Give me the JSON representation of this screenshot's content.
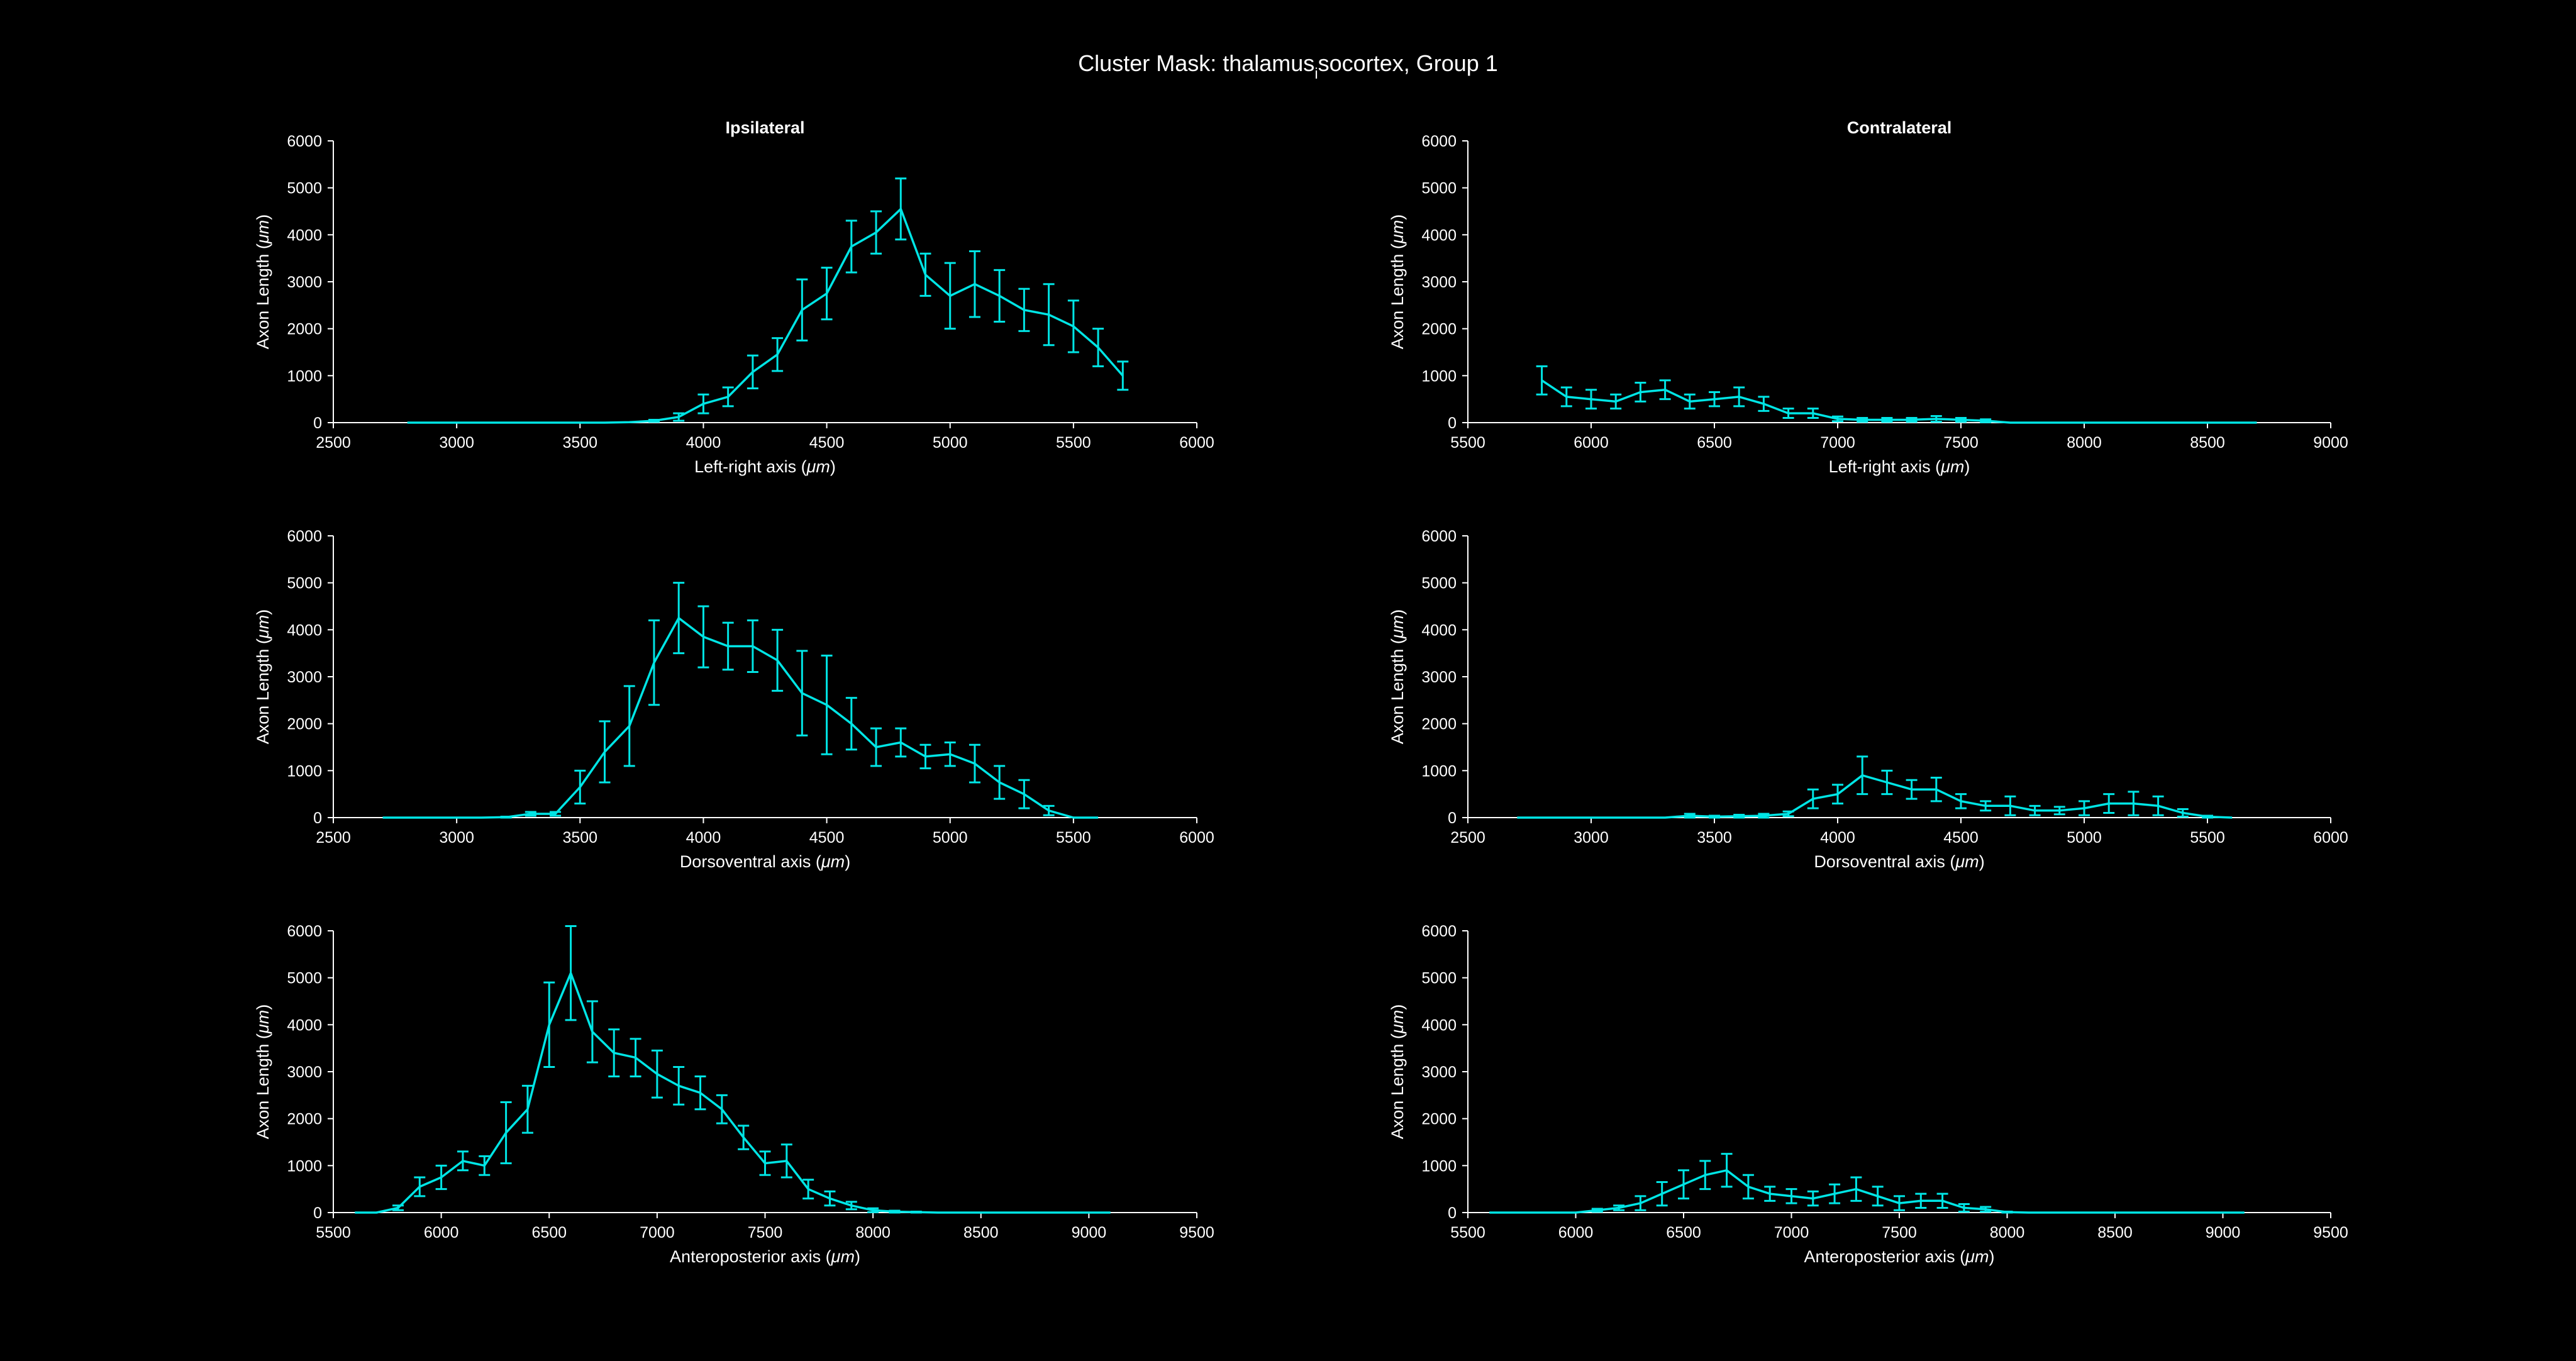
{
  "figure": {
    "title_main": "Cluster Mask: thalamus",
    "title_subscript": "i",
    "title_rest": "socortex, Group 1",
    "background": "#000000",
    "foreground": "#ffffff",
    "series_color": "#00e5e5"
  },
  "chart_data": [
    {
      "type": "line",
      "subplot_title": "Ipsilateral",
      "error_bars": true,
      "xlabel_prefix": "Left-right axis (",
      "xlabel_unit": "μm",
      "xlabel_suffix": ")",
      "ylabel_prefix": "Axon Length (",
      "ylabel_unit": "μm",
      "ylabel_suffix": ")",
      "xlim": [
        2500,
        6000
      ],
      "xticks": [
        2500,
        3000,
        3500,
        4000,
        4500,
        5000,
        5500,
        6000
      ],
      "ylim": [
        0,
        6000
      ],
      "yticks": [
        0,
        1000,
        2000,
        3000,
        4000,
        5000,
        6000
      ],
      "x": [
        2800,
        2900,
        3000,
        3100,
        3200,
        3300,
        3400,
        3500,
        3600,
        3700,
        3800,
        3900,
        4000,
        4100,
        4200,
        4300,
        4400,
        4500,
        4600,
        4700,
        4800,
        4900,
        5000,
        5100,
        5200,
        5300,
        5400,
        5500,
        5600,
        5700
      ],
      "y": [
        0,
        0,
        0,
        0,
        0,
        0,
        0,
        0,
        0,
        10,
        40,
        120,
        400,
        550,
        1080,
        1450,
        2400,
        2750,
        3750,
        4050,
        4550,
        3150,
        2700,
        2950,
        2700,
        2400,
        2300,
        2050,
        1600,
        1000
      ],
      "err": [
        0,
        0,
        0,
        0,
        0,
        0,
        0,
        0,
        0,
        0,
        20,
        80,
        200,
        200,
        350,
        350,
        650,
        550,
        550,
        450,
        650,
        450,
        700,
        700,
        550,
        450,
        650,
        550,
        400,
        300
      ]
    },
    {
      "type": "line",
      "subplot_title": "Contralateral",
      "error_bars": true,
      "xlabel_prefix": "Left-right axis (",
      "xlabel_unit": "μm",
      "xlabel_suffix": ")",
      "ylabel_prefix": "Axon Length (",
      "ylabel_unit": "μm",
      "ylabel_suffix": ")",
      "xlim": [
        5500,
        9000
      ],
      "xticks": [
        5500,
        6000,
        6500,
        7000,
        7500,
        8000,
        8500,
        9000
      ],
      "ylim": [
        0,
        6000
      ],
      "yticks": [
        0,
        1000,
        2000,
        3000,
        4000,
        5000,
        6000
      ],
      "x": [
        5800,
        5900,
        6000,
        6100,
        6200,
        6300,
        6400,
        6500,
        6600,
        6700,
        6800,
        6900,
        7000,
        7100,
        7200,
        7300,
        7400,
        7500,
        7600,
        7700,
        7800,
        7900,
        8000,
        8100,
        8200,
        8300,
        8400,
        8500,
        8600,
        8700
      ],
      "y": [
        900,
        550,
        500,
        450,
        650,
        700,
        450,
        500,
        550,
        400,
        200,
        200,
        80,
        60,
        60,
        60,
        80,
        60,
        40,
        0,
        0,
        0,
        0,
        0,
        0,
        0,
        0,
        0,
        0,
        0
      ],
      "err": [
        300,
        200,
        200,
        150,
        200,
        200,
        150,
        150,
        200,
        150,
        100,
        100,
        50,
        40,
        40,
        40,
        60,
        40,
        30,
        0,
        0,
        0,
        0,
        0,
        0,
        0,
        0,
        0,
        0,
        0
      ]
    },
    {
      "type": "line",
      "subplot_title": "",
      "error_bars": true,
      "xlabel_prefix": "Dorsoventral axis (",
      "xlabel_unit": "μm",
      "xlabel_suffix": ")",
      "ylabel_prefix": "Axon Length (",
      "ylabel_unit": "μm",
      "ylabel_suffix": ")",
      "xlim": [
        2500,
        6000
      ],
      "xticks": [
        2500,
        3000,
        3500,
        4000,
        4500,
        5000,
        5500,
        6000
      ],
      "ylim": [
        0,
        6000
      ],
      "yticks": [
        0,
        1000,
        2000,
        3000,
        4000,
        5000,
        6000
      ],
      "x": [
        2700,
        2800,
        2900,
        3000,
        3100,
        3200,
        3300,
        3400,
        3500,
        3600,
        3700,
        3800,
        3900,
        4000,
        4100,
        4200,
        4300,
        4400,
        4500,
        4600,
        4700,
        4800,
        4900,
        5000,
        5100,
        5200,
        5300,
        5400,
        5500,
        5600
      ],
      "y": [
        0,
        0,
        0,
        0,
        0,
        10,
        80,
        80,
        650,
        1400,
        1950,
        3300,
        4250,
        3850,
        3650,
        3650,
        3350,
        2650,
        2400,
        2000,
        1500,
        1600,
        1300,
        1350,
        1150,
        750,
        500,
        150,
        0,
        0
      ],
      "err": [
        0,
        0,
        0,
        0,
        0,
        10,
        40,
        40,
        350,
        650,
        850,
        900,
        750,
        650,
        500,
        550,
        650,
        900,
        1050,
        550,
        400,
        300,
        250,
        250,
        400,
        350,
        300,
        100,
        0,
        0
      ]
    },
    {
      "type": "line",
      "subplot_title": "",
      "error_bars": true,
      "xlabel_prefix": "Dorsoventral axis (",
      "xlabel_unit": "μm",
      "xlabel_suffix": ")",
      "ylabel_prefix": "Axon Length (",
      "ylabel_unit": "μm",
      "ylabel_suffix": ")",
      "xlim": [
        2500,
        6000
      ],
      "xticks": [
        2500,
        3000,
        3500,
        4000,
        4500,
        5000,
        5500,
        6000
      ],
      "ylim": [
        0,
        6000
      ],
      "yticks": [
        0,
        1000,
        2000,
        3000,
        4000,
        5000,
        6000
      ],
      "x": [
        2700,
        2800,
        2900,
        3000,
        3100,
        3200,
        3300,
        3400,
        3500,
        3600,
        3700,
        3800,
        3900,
        4000,
        4100,
        4200,
        4300,
        4400,
        4500,
        4600,
        4700,
        4800,
        4900,
        5000,
        5100,
        5200,
        5300,
        5400,
        5500,
        5600
      ],
      "y": [
        0,
        0,
        0,
        0,
        0,
        0,
        0,
        40,
        20,
        30,
        40,
        80,
        400,
        500,
        900,
        750,
        600,
        600,
        350,
        250,
        250,
        150,
        150,
        200,
        300,
        300,
        250,
        100,
        20,
        0
      ],
      "err": [
        0,
        0,
        0,
        0,
        0,
        0,
        0,
        40,
        20,
        30,
        40,
        50,
        200,
        200,
        400,
        250,
        200,
        250,
        150,
        100,
        200,
        100,
        80,
        150,
        200,
        250,
        200,
        80,
        20,
        0
      ]
    },
    {
      "type": "line",
      "subplot_title": "",
      "error_bars": true,
      "xlabel_prefix": "Anteroposterior axis (",
      "xlabel_unit": "μm",
      "xlabel_suffix": ")",
      "ylabel_prefix": "Axon Length (",
      "ylabel_unit": "μm",
      "ylabel_suffix": ")",
      "xlim": [
        5500,
        9500
      ],
      "xticks": [
        5500,
        6000,
        6500,
        7000,
        7500,
        8000,
        8500,
        9000,
        9500
      ],
      "ylim": [
        0,
        6000
      ],
      "yticks": [
        0,
        1000,
        2000,
        3000,
        4000,
        5000,
        6000
      ],
      "x": [
        5600,
        5700,
        5800,
        5900,
        6000,
        6100,
        6200,
        6300,
        6400,
        6500,
        6600,
        6700,
        6800,
        6900,
        7000,
        7100,
        7200,
        7300,
        7400,
        7500,
        7600,
        7700,
        7800,
        7900,
        8000,
        8100,
        8200,
        8300,
        8400,
        8500,
        8600,
        8700,
        8800,
        8900,
        9000,
        9100
      ],
      "y": [
        0,
        0,
        100,
        550,
        750,
        1100,
        1000,
        1700,
        2200,
        4000,
        5100,
        3850,
        3400,
        3300,
        2950,
        2700,
        2550,
        2200,
        1600,
        1050,
        1100,
        500,
        300,
        150,
        50,
        20,
        10,
        0,
        0,
        0,
        0,
        0,
        0,
        0,
        0,
        0
      ],
      "err": [
        0,
        0,
        50,
        200,
        250,
        200,
        200,
        650,
        500,
        900,
        1000,
        650,
        500,
        400,
        500,
        400,
        350,
        300,
        250,
        250,
        350,
        200,
        150,
        80,
        40,
        20,
        10,
        0,
        0,
        0,
        0,
        0,
        0,
        0,
        0,
        0
      ]
    },
    {
      "type": "line",
      "subplot_title": "",
      "error_bars": true,
      "xlabel_prefix": "Anteroposterior axis (",
      "xlabel_unit": "μm",
      "xlabel_suffix": ")",
      "ylabel_prefix": "Axon Length (",
      "ylabel_unit": "μm",
      "ylabel_suffix": ")",
      "xlim": [
        5500,
        9500
      ],
      "xticks": [
        5500,
        6000,
        6500,
        7000,
        7500,
        8000,
        8500,
        9000,
        9500
      ],
      "ylim": [
        0,
        6000
      ],
      "yticks": [
        0,
        1000,
        2000,
        3000,
        4000,
        5000,
        6000
      ],
      "x": [
        5600,
        5700,
        5800,
        5900,
        6000,
        6100,
        6200,
        6300,
        6400,
        6500,
        6600,
        6700,
        6800,
        6900,
        7000,
        7100,
        7200,
        7300,
        7400,
        7500,
        7600,
        7700,
        7800,
        7900,
        8000,
        8100,
        8200,
        8300,
        8400,
        8500,
        8600,
        8700,
        8800,
        8900,
        9000,
        9100
      ],
      "y": [
        0,
        0,
        0,
        0,
        0,
        50,
        100,
        200,
        400,
        600,
        800,
        900,
        550,
        400,
        350,
        300,
        400,
        500,
        350,
        200,
        250,
        250,
        100,
        70,
        10,
        0,
        0,
        0,
        0,
        0,
        0,
        0,
        0,
        0,
        0,
        0
      ],
      "err": [
        0,
        0,
        0,
        0,
        0,
        30,
        50,
        150,
        250,
        300,
        300,
        350,
        250,
        150,
        150,
        150,
        200,
        250,
        200,
        150,
        150,
        150,
        80,
        50,
        10,
        0,
        0,
        0,
        0,
        0,
        0,
        0,
        0,
        0,
        0,
        0
      ]
    }
  ]
}
